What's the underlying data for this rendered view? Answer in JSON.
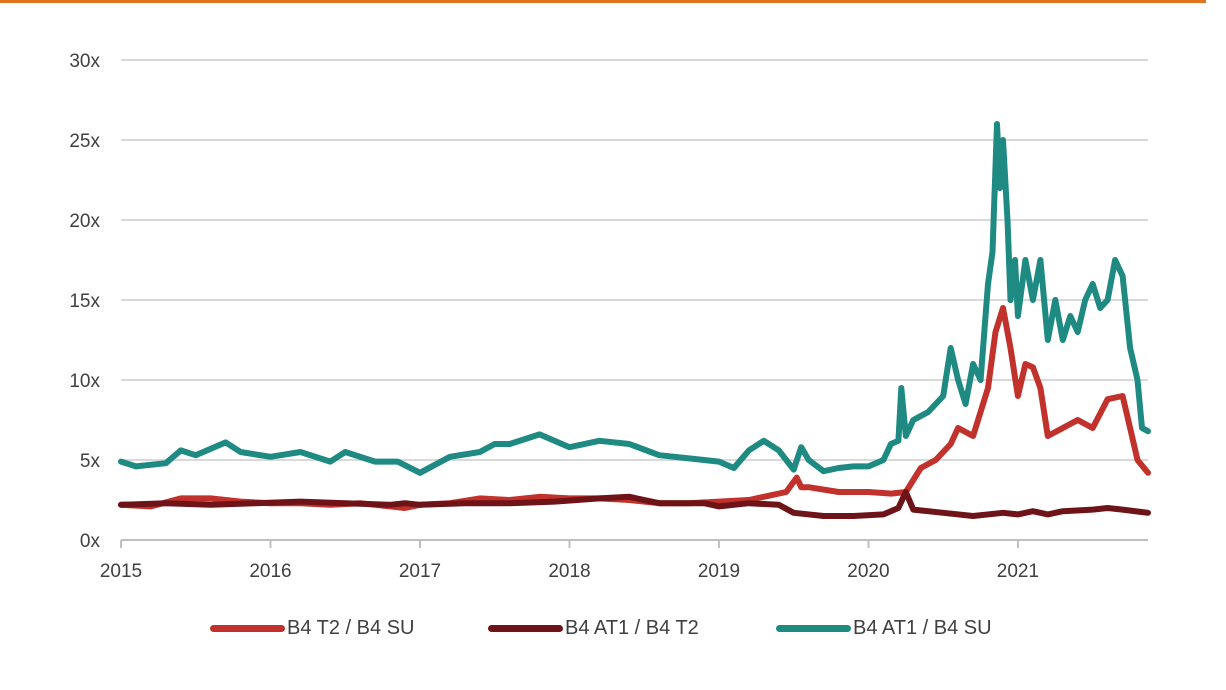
{
  "colors": {
    "top_rule": "#e0731f",
    "grid": "#d9d9d9",
    "axis": "#bfbfbf",
    "text": "#404040"
  },
  "chart_data": {
    "type": "line",
    "title": "",
    "xlabel": "",
    "ylabel": "",
    "xlim": [
      2015.0,
      2021.87
    ],
    "ylim": [
      0,
      30
    ],
    "y_ticks": [
      0,
      5,
      10,
      15,
      20,
      25,
      30
    ],
    "y_tick_labels": [
      "0x",
      "5x",
      "10x",
      "15x",
      "20x",
      "25x",
      "30x"
    ],
    "x_ticks": [
      2015,
      2016,
      2017,
      2018,
      2019,
      2020,
      2021
    ],
    "x_tick_labels": [
      "2015",
      "2016",
      "2017",
      "2018",
      "2019",
      "2020",
      "2021"
    ],
    "grid": true,
    "legend_position": "bottom",
    "series": [
      {
        "name": "B4 T2 / B4 SU",
        "color": "#c0322b",
        "x": [
          2015.0,
          2015.2,
          2015.4,
          2015.6,
          2015.8,
          2016.0,
          2016.2,
          2016.4,
          2016.6,
          2016.8,
          2016.9,
          2017.0,
          2017.2,
          2017.4,
          2017.6,
          2017.8,
          2018.0,
          2018.2,
          2018.4,
          2018.6,
          2018.8,
          2019.0,
          2019.2,
          2019.35,
          2019.45,
          2019.52,
          2019.55,
          2019.6,
          2019.8,
          2020.0,
          2020.15,
          2020.25,
          2020.35,
          2020.45,
          2020.55,
          2020.6,
          2020.7,
          2020.8,
          2020.85,
          2020.9,
          2020.95,
          2021.0,
          2021.05,
          2021.1,
          2021.15,
          2021.2,
          2021.3,
          2021.4,
          2021.5,
          2021.6,
          2021.7,
          2021.75,
          2021.8,
          2021.87
        ],
        "y": [
          2.2,
          2.1,
          2.6,
          2.6,
          2.4,
          2.3,
          2.3,
          2.2,
          2.3,
          2.1,
          2.0,
          2.2,
          2.3,
          2.6,
          2.5,
          2.7,
          2.6,
          2.6,
          2.5,
          2.3,
          2.3,
          2.4,
          2.5,
          2.8,
          3.0,
          3.9,
          3.3,
          3.3,
          3.0,
          3.0,
          2.9,
          3.0,
          4.5,
          5.0,
          6.0,
          7.0,
          6.5,
          9.5,
          13.0,
          14.5,
          12.0,
          9.0,
          11.0,
          10.8,
          9.5,
          6.5,
          7.0,
          7.5,
          7.0,
          8.8,
          9.0,
          7.0,
          5.0,
          4.2
        ]
      },
      {
        "name": "B4 AT1 / B4 T2",
        "color": "#6e1418",
        "x": [
          2015.0,
          2015.3,
          2015.6,
          2015.9,
          2016.2,
          2016.5,
          2016.8,
          2016.9,
          2017.0,
          2017.3,
          2017.6,
          2017.9,
          2018.2,
          2018.4,
          2018.6,
          2018.9,
          2019.0,
          2019.2,
          2019.4,
          2019.5,
          2019.7,
          2019.9,
          2020.1,
          2020.2,
          2020.25,
          2020.3,
          2020.5,
          2020.7,
          2020.9,
          2021.0,
          2021.1,
          2021.2,
          2021.3,
          2021.5,
          2021.6,
          2021.7,
          2021.87
        ],
        "y": [
          2.2,
          2.3,
          2.2,
          2.3,
          2.4,
          2.3,
          2.2,
          2.3,
          2.2,
          2.3,
          2.3,
          2.4,
          2.6,
          2.7,
          2.3,
          2.3,
          2.1,
          2.3,
          2.2,
          1.7,
          1.5,
          1.5,
          1.6,
          2.0,
          3.0,
          1.9,
          1.7,
          1.5,
          1.7,
          1.6,
          1.8,
          1.6,
          1.8,
          1.9,
          2.0,
          1.9,
          1.7
        ]
      },
      {
        "name": "B4 AT1 / B4 SU",
        "color": "#1f8a82",
        "x": [
          2015.0,
          2015.1,
          2015.3,
          2015.4,
          2015.5,
          2015.7,
          2015.8,
          2016.0,
          2016.2,
          2016.4,
          2016.5,
          2016.7,
          2016.85,
          2017.0,
          2017.2,
          2017.4,
          2017.5,
          2017.6,
          2017.8,
          2018.0,
          2018.2,
          2018.4,
          2018.6,
          2018.8,
          2019.0,
          2019.1,
          2019.2,
          2019.3,
          2019.4,
          2019.5,
          2019.55,
          2019.6,
          2019.7,
          2019.8,
          2019.9,
          2020.0,
          2020.1,
          2020.15,
          2020.2,
          2020.22,
          2020.25,
          2020.3,
          2020.4,
          2020.5,
          2020.55,
          2020.6,
          2020.65,
          2020.7,
          2020.75,
          2020.8,
          2020.83,
          2020.86,
          2020.88,
          2020.9,
          2020.93,
          2020.95,
          2020.98,
          2021.0,
          2021.05,
          2021.1,
          2021.15,
          2021.2,
          2021.25,
          2021.3,
          2021.35,
          2021.4,
          2021.45,
          2021.5,
          2021.55,
          2021.6,
          2021.65,
          2021.7,
          2021.75,
          2021.8,
          2021.83,
          2021.87
        ],
        "y": [
          4.9,
          4.6,
          4.8,
          5.6,
          5.3,
          6.1,
          5.5,
          5.2,
          5.5,
          4.9,
          5.5,
          4.9,
          4.9,
          4.2,
          5.2,
          5.5,
          6.0,
          6.0,
          6.6,
          5.8,
          6.2,
          6.0,
          5.3,
          5.1,
          4.9,
          4.5,
          5.6,
          6.2,
          5.6,
          4.4,
          5.8,
          5.0,
          4.3,
          4.5,
          4.6,
          4.6,
          5.0,
          6.0,
          6.2,
          9.5,
          6.5,
          7.5,
          8.0,
          9.0,
          12.0,
          10.0,
          8.5,
          11.0,
          10.0,
          16.0,
          18.0,
          26.0,
          22.0,
          25.0,
          20.0,
          15.0,
          17.5,
          14.0,
          17.5,
          15.0,
          17.5,
          12.5,
          15.0,
          12.5,
          14.0,
          13.0,
          15.0,
          16.0,
          14.5,
          15.0,
          17.5,
          16.5,
          12.0,
          10.0,
          7.0,
          6.8
        ]
      }
    ]
  }
}
